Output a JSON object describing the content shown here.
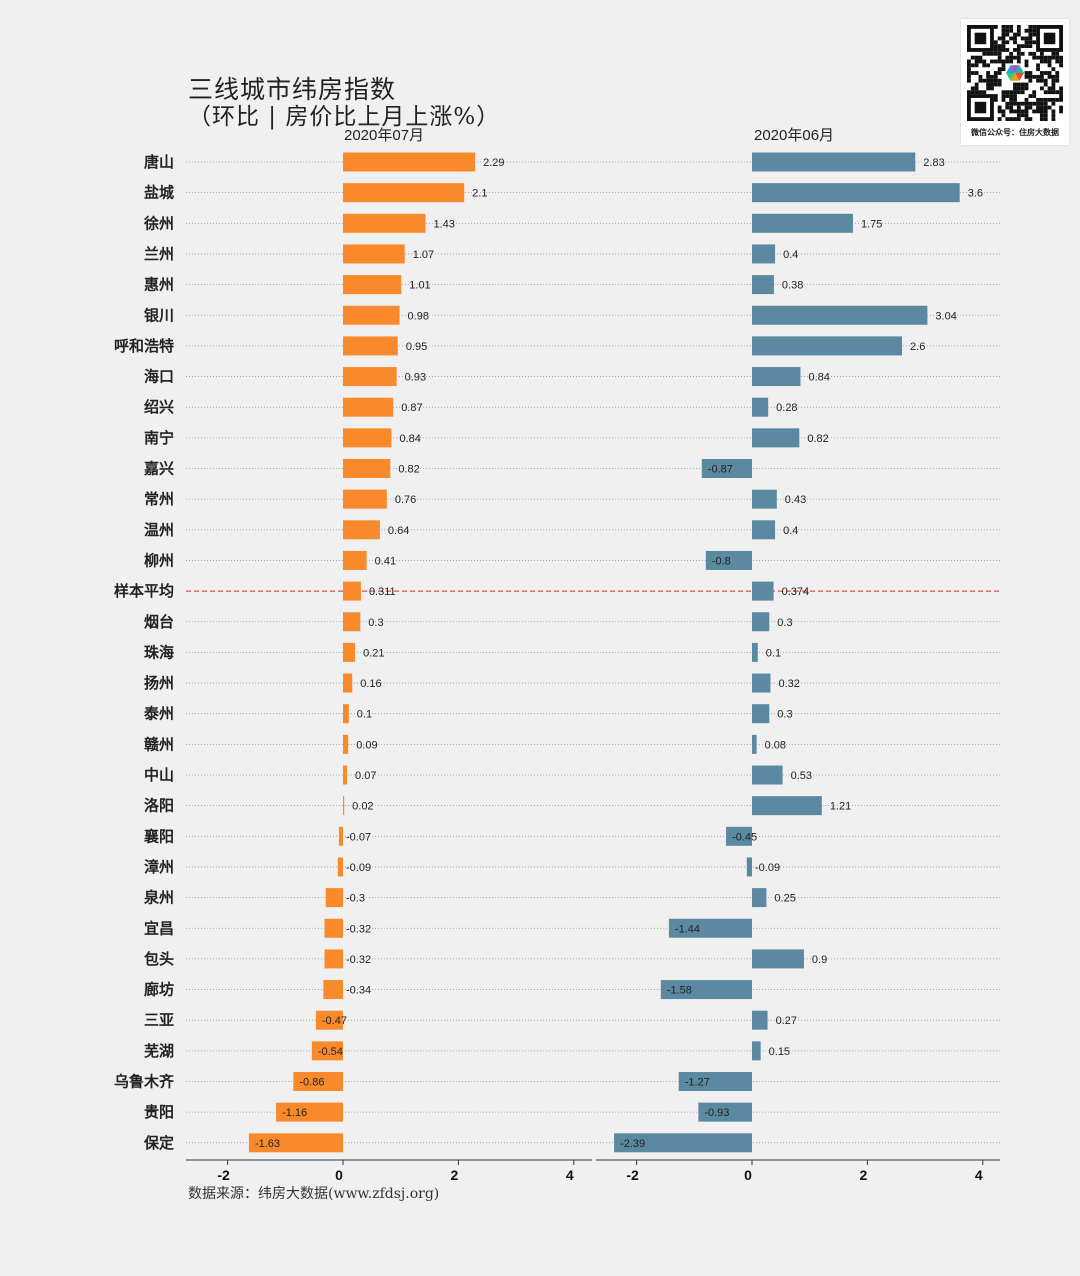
{
  "title": "三线城市纬房指数",
  "subtitle": "（环比 | 房价比上月上涨%）",
  "source": "数据来源：纬房大数据(www.zfdsj.org)",
  "qr_caption": "微信公众号：住房大数据",
  "colors": {
    "left_bar": "#f98a2c",
    "right_bar": "#5b89a1",
    "average_line": "#d9534f",
    "grid": "#9a9a9a"
  },
  "chart_data": [
    {
      "type": "bar",
      "orientation": "horizontal",
      "title": "2020年07月",
      "xlim": [
        -2.5,
        4.5
      ],
      "xticks": [
        -2,
        0,
        2,
        4
      ],
      "categories": [
        "唐山",
        "盐城",
        "徐州",
        "兰州",
        "惠州",
        "银川",
        "呼和浩特",
        "海口",
        "绍兴",
        "南宁",
        "嘉兴",
        "常州",
        "温州",
        "柳州",
        "样本平均",
        "烟台",
        "珠海",
        "扬州",
        "泰州",
        "赣州",
        "中山",
        "洛阳",
        "襄阳",
        "漳州",
        "泉州",
        "宜昌",
        "包头",
        "廊坊",
        "三亚",
        "芜湖",
        "乌鲁木齐",
        "贵阳",
        "保定"
      ],
      "values": [
        2.29,
        2.1,
        1.43,
        1.07,
        1.01,
        0.98,
        0.95,
        0.93,
        0.87,
        0.84,
        0.82,
        0.76,
        0.64,
        0.41,
        0.311,
        0.3,
        0.21,
        0.16,
        0.1,
        0.09,
        0.07,
        0.02,
        -0.07,
        -0.09,
        -0.3,
        -0.32,
        -0.32,
        -0.34,
        -0.47,
        -0.54,
        -0.86,
        -1.16,
        -1.63
      ],
      "labels": [
        "2.29",
        "2.1",
        "1.43",
        "1.07",
        "1.01",
        "0.98",
        "0.95",
        "0.93",
        "0.87",
        "0.84",
        "0.82",
        "0.76",
        "0.64",
        "0.41",
        "0.311",
        "0.3",
        "0.21",
        "0.16",
        "0.1",
        "0.09",
        "0.07",
        "0.02",
        "-0.07",
        "-0.09",
        "-0.3",
        "-0.32",
        "-0.32",
        "-0.34",
        "-0.47",
        "-0.54",
        "-0.86",
        "-1.16",
        "-1.63"
      ],
      "average_category": "样本平均"
    },
    {
      "type": "bar",
      "orientation": "horizontal",
      "title": "2020年06月",
      "xlim": [
        -2.5,
        4.2
      ],
      "xticks": [
        -2,
        0,
        2,
        4
      ],
      "categories": [
        "唐山",
        "盐城",
        "徐州",
        "兰州",
        "惠州",
        "银川",
        "呼和浩特",
        "海口",
        "绍兴",
        "南宁",
        "嘉兴",
        "常州",
        "温州",
        "柳州",
        "样本平均",
        "烟台",
        "珠海",
        "扬州",
        "泰州",
        "赣州",
        "中山",
        "洛阳",
        "襄阳",
        "漳州",
        "泉州",
        "宜昌",
        "包头",
        "廊坊",
        "三亚",
        "芜湖",
        "乌鲁木齐",
        "贵阳",
        "保定"
      ],
      "values": [
        2.83,
        3.6,
        1.75,
        0.4,
        0.38,
        3.04,
        2.6,
        0.84,
        0.28,
        0.82,
        -0.87,
        0.43,
        0.4,
        -0.8,
        0.374,
        0.3,
        0.1,
        0.32,
        0.3,
        0.08,
        0.53,
        1.21,
        -0.45,
        -0.09,
        0.25,
        -1.44,
        0.9,
        -1.58,
        0.27,
        0.15,
        -1.27,
        -0.93,
        -2.39
      ],
      "labels": [
        "2.83",
        "3.6",
        "1.75",
        "0.4",
        "0.38",
        "3.04",
        "2.6",
        "0.84",
        "0.28",
        "0.82",
        "-0.87",
        "0.43",
        "0.4",
        "-0.8",
        "0.374",
        "0.3",
        "0.1",
        "0.32",
        "0.3",
        "0.08",
        "0.53",
        "1.21",
        "-0.45",
        "-0.09",
        "0.25",
        "-1.44",
        "0.9",
        "-1.58",
        "0.27",
        "0.15",
        "-1.27",
        "-0.93",
        "-2.39"
      ],
      "average_category": "样本平均"
    }
  ]
}
